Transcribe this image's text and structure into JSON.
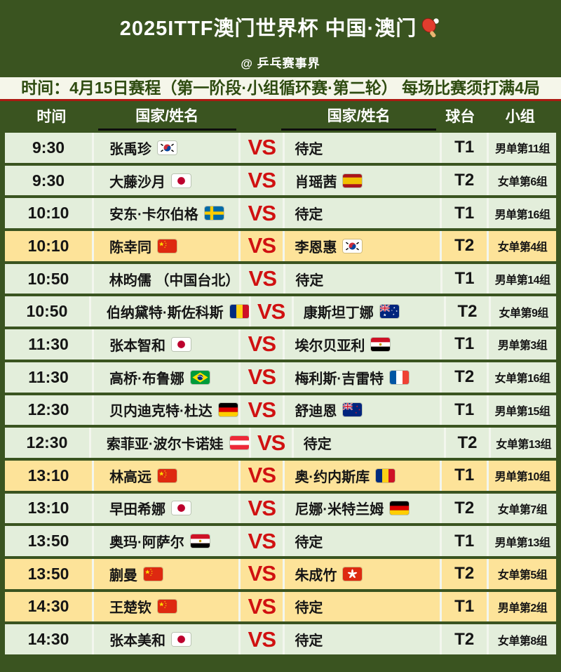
{
  "page": {
    "title": "2025ITTF澳门世界杯 中国·澳门",
    "title_icon": "ping-pong-paddle-icon",
    "subtitle": "@ 乒乓赛事界",
    "notice": "时间：4月15日赛程（第一阶段·小组循环赛·第二轮） 每场比赛须打满4局"
  },
  "colors": {
    "frame_green": "#3a5420",
    "row_green": "#e3eedb",
    "row_highlight_yellow": "#fde399",
    "notice_bg": "#f5f6ea",
    "notice_underline_red": "#ab1a12",
    "vs_red": "#d01111",
    "header_text": "#ffffff"
  },
  "table": {
    "headers": {
      "time": "时间",
      "player1": "国家/姓名",
      "player2": "国家/姓名",
      "table_no": "球台",
      "group": "小组"
    },
    "vs_label": "VS",
    "rows": [
      {
        "time": "9:30",
        "player1": "张禹珍",
        "flag1": "kr",
        "player2": "待定",
        "flag2": "none",
        "table_no": "T1",
        "group": "男单第11组",
        "highlighted": false
      },
      {
        "time": "9:30",
        "player1": "大藤沙月",
        "flag1": "jp",
        "player2": "肖瑶茜",
        "flag2": "es",
        "table_no": "T2",
        "group": "女单第6组",
        "highlighted": false
      },
      {
        "time": "10:10",
        "player1": "安东·卡尔伯格",
        "flag1": "se",
        "player2": "待定",
        "flag2": "none",
        "table_no": "T1",
        "group": "男单第16组",
        "highlighted": false
      },
      {
        "time": "10:10",
        "player1": "陈幸同",
        "flag1": "cn",
        "player2": "李恩惠",
        "flag2": "kr",
        "table_no": "T2",
        "group": "女单第4组",
        "highlighted": true
      },
      {
        "time": "10:50",
        "player1": "林昀儒 （中国台北）",
        "flag1": "none",
        "player2": "待定",
        "flag2": "none",
        "table_no": "T1",
        "group": "男单第14组",
        "highlighted": false
      },
      {
        "time": "10:50",
        "player1": "伯纳黛特·斯佐科斯",
        "flag1": "ro",
        "player2": "康斯坦丁娜",
        "flag2": "au",
        "table_no": "T2",
        "group": "女单第9组",
        "highlighted": false
      },
      {
        "time": "11:30",
        "player1": "张本智和",
        "flag1": "jp",
        "player2": "埃尔贝亚利",
        "flag2": "eg",
        "table_no": "T1",
        "group": "男单第3组",
        "highlighted": false
      },
      {
        "time": "11:30",
        "player1": "高桥·布鲁娜",
        "flag1": "br",
        "player2": "梅利斯·吉雷特",
        "flag2": "fr",
        "table_no": "T2",
        "group": "女单第16组",
        "highlighted": false
      },
      {
        "time": "12:30",
        "player1": "贝内迪克特·杜达",
        "flag1": "de",
        "player2": "舒迪恩",
        "flag2": "nz",
        "table_no": "T1",
        "group": "男单第15组",
        "highlighted": false
      },
      {
        "time": "12:30",
        "player1": "索菲亚·波尔卡诺娃",
        "flag1": "at",
        "player2": "待定",
        "flag2": "none",
        "table_no": "T2",
        "group": "女单第13组",
        "highlighted": false
      },
      {
        "time": "13:10",
        "player1": "林高远",
        "flag1": "cn",
        "player2": "奥·约内斯库",
        "flag2": "ro",
        "table_no": "T1",
        "group": "男单第10组",
        "highlighted": true
      },
      {
        "time": "13:10",
        "player1": "早田希娜",
        "flag1": "jp",
        "player2": "尼娜·米特兰姆",
        "flag2": "de",
        "table_no": "T2",
        "group": "女单第7组",
        "highlighted": false
      },
      {
        "time": "13:50",
        "player1": "奥玛·阿萨尔",
        "flag1": "eg",
        "player2": "待定",
        "flag2": "none",
        "table_no": "T1",
        "group": "男单第13组",
        "highlighted": false
      },
      {
        "time": "13:50",
        "player1": "蒯曼",
        "flag1": "cn",
        "player2": "朱成竹",
        "flag2": "hk",
        "table_no": "T2",
        "group": "女单第5组",
        "highlighted": true
      },
      {
        "time": "14:30",
        "player1": "王楚钦",
        "flag1": "cn",
        "player2": "待定",
        "flag2": "none",
        "table_no": "T1",
        "group": "男单第2组",
        "highlighted": true
      },
      {
        "time": "14:30",
        "player1": "张本美和",
        "flag1": "jp",
        "player2": "待定",
        "flag2": "none",
        "table_no": "T2",
        "group": "女单第8组",
        "highlighted": false
      }
    ]
  }
}
